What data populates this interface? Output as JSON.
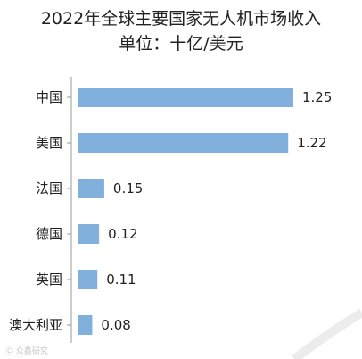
{
  "chart_data": {
    "type": "bar",
    "orientation": "horizontal",
    "title": "2022年全球主要国家无人机市场收入",
    "subtitle": "单位：十亿/美元",
    "categories": [
      "中国",
      "美国",
      "法国",
      "德国",
      "英国",
      "澳大利亚"
    ],
    "values": [
      1.25,
      1.22,
      0.15,
      0.12,
      0.11,
      0.08
    ],
    "value_labels": [
      "1.25",
      "1.22",
      "0.15",
      "0.12",
      "0.11",
      "0.08"
    ],
    "xlim": [
      0,
      1.25
    ],
    "grid": false,
    "legend": "none",
    "bar_color": "#82b0dd",
    "axis_color": "#9a9a9a"
  },
  "watermark": "Ⓒ 众鑫研究"
}
